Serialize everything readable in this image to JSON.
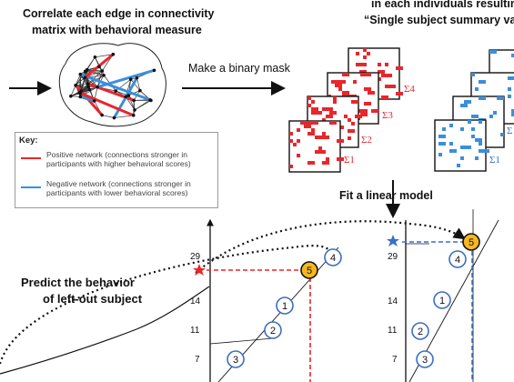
{
  "header": {
    "left_title_line1": "Correlate each edge in connectivity",
    "left_title_line2": "matrix with behavioral measure",
    "right_title_line1": "in each individuals resulting",
    "right_title_line2": "“Single subject summary val"
  },
  "steps": {
    "mask": "Make a binary mask",
    "fit": "Fit a linear model",
    "predict_line1": "Predict the behavior",
    "predict_line2": "of left-out subject"
  },
  "key": {
    "title": "Key:",
    "positive": "Positive network (connections stronger in participants with higher behavioral scores)",
    "negative": "Negative network (connections stronger in participants with lower behavioral scores)"
  },
  "sigma_labels": {
    "red": [
      "Σ4",
      "Σ3",
      "Σ2",
      "Σ1"
    ],
    "blue": [
      "Σ",
      "Σ1"
    ]
  },
  "left_plot": {
    "y_ticks": [
      "29",
      "14",
      "11",
      "7"
    ],
    "points": [
      "1",
      "2",
      "3",
      "4"
    ],
    "predicted": "5"
  },
  "right_plot": {
    "y_ticks": [
      "29",
      "14",
      "11",
      "7"
    ],
    "points": [
      "1",
      "2",
      "3",
      "4"
    ],
    "predicted": "5"
  },
  "colors": {
    "positive": "#e8262c",
    "negative": "#3b8fd9",
    "circle": "#3a6fc4",
    "predicted_fill": "#f6b81c",
    "dashed_red": "#e8262c",
    "dashed_blue": "#3a6fc4"
  }
}
